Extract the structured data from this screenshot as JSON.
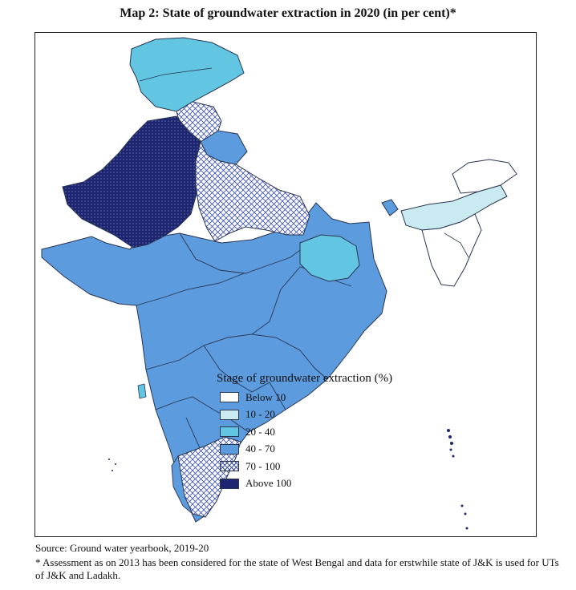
{
  "title": "Map 2: State of groundwater extraction in 2020 (in per cent)*",
  "colors": {
    "below10": "#ffffff",
    "c10_20": "#c9eaf0",
    "c20_40": "#62c6e2",
    "c40_70": "#5b9bde",
    "c70_100_hatch": "#3a4fb0",
    "above100": "#1d2570",
    "border": "#2a3550"
  },
  "legend": {
    "title": "Stage of groundwater extraction (%)",
    "items": [
      {
        "label": "Below 10"
      },
      {
        "label": "10 - 20"
      },
      {
        "label": "20 - 40"
      },
      {
        "label": "40 - 70"
      },
      {
        "label": "70 - 100"
      },
      {
        "label": "Above 100"
      }
    ]
  },
  "source": "Source: Ground water yearbook, 2019-20",
  "note": "* Assessment as on 2013 has been considered for the state of West Bengal and data for erstwhile state of J&K is used for UTs of J&K and Ladakh."
}
